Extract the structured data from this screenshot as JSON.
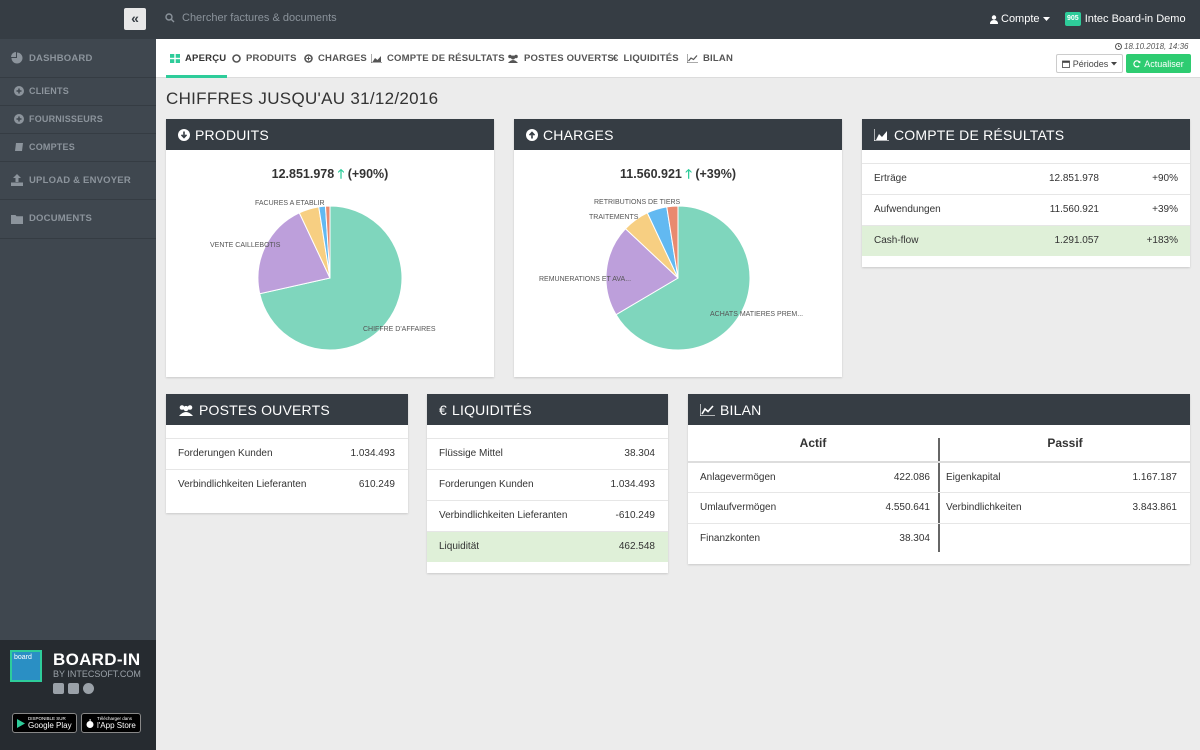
{
  "topbar": {
    "collapse_icon": "«",
    "search_placeholder": "Chercher factures & documents",
    "account_label": "Compte",
    "org_badge": "905",
    "org_name": "Intec Board-in Demo"
  },
  "sidebar": {
    "items": [
      {
        "label": "DASHBOARD",
        "icon": "pie-chart-icon"
      },
      {
        "label": "CLIENTS",
        "icon": "circle-plus-icon"
      },
      {
        "label": "FOURNISSEURS",
        "icon": "circle-plus-icon"
      },
      {
        "label": "COMPTES",
        "icon": "book-icon"
      },
      {
        "label": "UPLOAD & ENVOYER",
        "icon": "upload-icon"
      },
      {
        "label": "DOCUMENTS",
        "icon": "folder-icon"
      }
    ],
    "brand": {
      "logo_text": "board",
      "name": "BOARD-IN",
      "sub": "BY INTECSOFT.COM",
      "google_small": "DISPONIBLE SUR",
      "google_label": "Google Play",
      "apple_small": "Télécharger dans",
      "apple_label": "l'App Store"
    }
  },
  "tabs": [
    {
      "label": "APERÇU",
      "icon": "grid-icon",
      "active": true
    },
    {
      "label": "PRODUITS",
      "icon": "circle-icon"
    },
    {
      "label": "CHARGES",
      "icon": "circle-plus-icon"
    },
    {
      "label": "COMPTE DE RÉSULTATS",
      "icon": "area-chart-icon"
    },
    {
      "label": "POSTES OUVERTS",
      "icon": "users-icon"
    },
    {
      "label": "LIQUIDITÉS",
      "icon": "euro-icon"
    },
    {
      "label": "BILAN",
      "icon": "line-chart-icon"
    }
  ],
  "toolbar": {
    "timestamp": "18.10.2018, 14:36",
    "periodes_label": "Périodes",
    "actualiser_label": "Actualiser"
  },
  "page_title": "CHIFFRES JUSQU'AU 31/12/2016",
  "produits": {
    "title": "PRODUITS",
    "total": "12.851.978",
    "change": "(+90%)",
    "labels": [
      "CHIFFRE D'AFFAIRES",
      "VENTE CAILLEBOTIS",
      "FACURES A ETABLIR"
    ]
  },
  "charges": {
    "title": "CHARGES",
    "total": "11.560.921",
    "change": "(+39%)",
    "labels": [
      "ACHATS MATIERES PREM...",
      "REMUNERATIONS ET AVA...",
      "TRAITEMENTS",
      "RETRIBUTIONS DE TIERS"
    ]
  },
  "chart_data": [
    {
      "type": "pie",
      "title": "PRODUITS",
      "categories": [
        "CHIFFRE D'AFFAIRES",
        "VENTE CAILLEBOTIS",
        "FACURES A ETABLIR",
        "",
        ""
      ],
      "values": [
        71.5,
        21.5,
        4.5,
        1.5,
        1.0
      ],
      "colors": [
        "#7fd6bd",
        "#bd9fdb",
        "#f7cf82",
        "#62b9f1",
        "#e98a6f"
      ]
    },
    {
      "type": "pie",
      "title": "CHARGES",
      "categories": [
        "ACHATS MATIERES PREM...",
        "REMUNERATIONS ET AVA...",
        "TRAITEMENTS",
        "RETRIBUTIONS DE TIERS",
        ""
      ],
      "values": [
        66.5,
        20.5,
        6.0,
        4.5,
        2.5
      ],
      "colors": [
        "#7fd6bd",
        "#bd9fdb",
        "#f7cf82",
        "#62b9f1",
        "#e98a6f"
      ]
    }
  ],
  "resultats": {
    "title": "COMPTE DE RÉSULTATS",
    "rows": [
      {
        "label": "Erträge",
        "value": "12.851.978",
        "pct": "+90%"
      },
      {
        "label": "Aufwendungen",
        "value": "11.560.921",
        "pct": "+39%"
      },
      {
        "label": "Cash-flow",
        "value": "1.291.057",
        "pct": "+183%"
      }
    ]
  },
  "postes": {
    "title": "POSTES OUVERTS",
    "rows": [
      {
        "label": "Forderungen Kunden",
        "value": "1.034.493"
      },
      {
        "label": "Verbindlichkeiten Lieferanten",
        "value": "610.249"
      }
    ]
  },
  "liquidites": {
    "title": "LIQUIDITÉS",
    "rows": [
      {
        "label": "Flüssige Mittel",
        "value": "38.304"
      },
      {
        "label": "Forderungen Kunden",
        "value": "1.034.493"
      },
      {
        "label": "Verbindlichkeiten Lieferanten",
        "value": "-610.249"
      },
      {
        "label": "Liquidität",
        "value": "462.548"
      }
    ]
  },
  "bilan": {
    "title": "BILAN",
    "actif_header": "Actif",
    "passif_header": "Passif",
    "actif": [
      {
        "label": "Anlagevermögen",
        "value": "422.086"
      },
      {
        "label": "Umlaufvermögen",
        "value": "4.550.641"
      },
      {
        "label": "Finanzkonten",
        "value": "38.304"
      }
    ],
    "passif": [
      {
        "label": "Eigenkapital",
        "value": "1.167.187"
      },
      {
        "label": "Verbindlichkeiten",
        "value": "3.843.861"
      }
    ]
  }
}
